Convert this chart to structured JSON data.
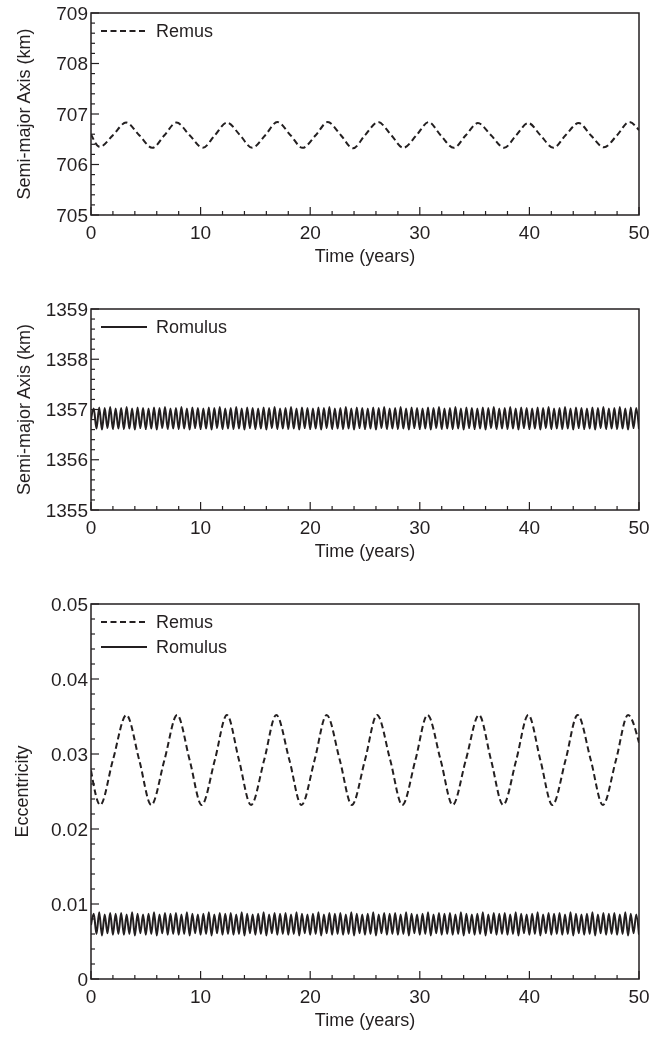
{
  "chart_data": [
    {
      "type": "line",
      "xlabel": "Time (years)",
      "ylabel": "Semi-major Axis (km)",
      "xlim": [
        0,
        50
      ],
      "ylim": [
        705,
        709
      ],
      "legend": "top left",
      "xticks": [
        0,
        {
          "value": 2,
          "label": null
        },
        {
          "value": 4,
          "label": null
        },
        {
          "value": 6,
          "label": null
        },
        {
          "value": 8,
          "label": null
        },
        10,
        {
          "value": 12,
          "label": null
        },
        {
          "value": 14,
          "label": null
        },
        {
          "value": 16,
          "label": null
        },
        {
          "value": 18,
          "label": null
        },
        20,
        {
          "value": 22,
          "label": null
        },
        {
          "value": 24,
          "label": null
        },
        {
          "value": 26,
          "label": null
        },
        {
          "value": 28,
          "label": null
        },
        30,
        {
          "value": 32,
          "label": null
        },
        {
          "value": 34,
          "label": null
        },
        {
          "value": 36,
          "label": null
        },
        {
          "value": 38,
          "label": null
        },
        40,
        {
          "value": 42,
          "label": null
        },
        {
          "value": 44,
          "label": null
        },
        {
          "value": 46,
          "label": null
        },
        {
          "value": 48,
          "label": null
        },
        50
      ],
      "yticks": [
        705,
        {
          "value": 705.2,
          "label": null
        },
        {
          "value": 705.4,
          "label": null
        },
        {
          "value": 705.6,
          "label": null
        },
        {
          "value": 705.8,
          "label": null
        },
        706,
        {
          "value": 706.2,
          "label": null
        },
        {
          "value": 706.4,
          "label": null
        },
        {
          "value": 706.6,
          "label": null
        },
        {
          "value": 706.8,
          "label": null
        },
        707,
        {
          "value": 707.2,
          "label": null
        },
        {
          "value": 707.4,
          "label": null
        },
        {
          "value": 707.6,
          "label": null
        },
        {
          "value": 707.8,
          "label": null
        },
        708,
        {
          "value": 708.2,
          "label": null
        },
        {
          "value": 708.4,
          "label": null
        },
        {
          "value": 708.6,
          "label": null
        },
        {
          "value": 708.8,
          "label": null
        },
        709
      ],
      "x": [
        0,
        0.8,
        2.0,
        3.2,
        4.4,
        5.6,
        6.7,
        7.8,
        9.0,
        10.2,
        11.3,
        12.4,
        13.6,
        14.7,
        15.9,
        17.0,
        18.2,
        19.3,
        20.5,
        21.6,
        22.8,
        23.9,
        25.0,
        26.2,
        27.4,
        28.5,
        29.7,
        30.8,
        31.9,
        33.1,
        34.2,
        35.3,
        36.5,
        37.7,
        38.8,
        39.9,
        41.0,
        42.2,
        43.3,
        44.5,
        45.6,
        46.8,
        48.0,
        49.1,
        50
      ],
      "series": [
        {
          "name": "Remus",
          "color": "#231f20",
          "line_style": "dashed",
          "values": [
            706.6,
            706.35,
            706.58,
            706.83,
            706.58,
            706.33,
            706.58,
            706.83,
            706.58,
            706.33,
            706.58,
            706.83,
            706.58,
            706.33,
            706.58,
            706.84,
            706.58,
            706.33,
            706.58,
            706.84,
            706.58,
            706.32,
            706.58,
            706.84,
            706.58,
            706.33,
            706.58,
            706.84,
            706.58,
            706.33,
            706.58,
            706.82,
            706.58,
            706.33,
            706.58,
            706.82,
            706.58,
            706.33,
            706.58,
            706.82,
            706.58,
            706.34,
            706.58,
            706.84,
            706.68
          ]
        }
      ]
    },
    {
      "type": "line",
      "xlabel": "Time (years)",
      "ylabel": "Semi-major Axis (km)",
      "xlim": [
        0,
        50
      ],
      "ylim": [
        1355,
        1359
      ],
      "legend": "top left",
      "xticks": [
        0,
        {
          "value": 2,
          "label": null
        },
        {
          "value": 4,
          "label": null
        },
        {
          "value": 6,
          "label": null
        },
        {
          "value": 8,
          "label": null
        },
        10,
        {
          "value": 12,
          "label": null
        },
        {
          "value": 14,
          "label": null
        },
        {
          "value": 16,
          "label": null
        },
        {
          "value": 18,
          "label": null
        },
        20,
        {
          "value": 22,
          "label": null
        },
        {
          "value": 24,
          "label": null
        },
        {
          "value": 26,
          "label": null
        },
        {
          "value": 28,
          "label": null
        },
        30,
        {
          "value": 32,
          "label": null
        },
        {
          "value": 34,
          "label": null
        },
        {
          "value": 36,
          "label": null
        },
        {
          "value": 38,
          "label": null
        },
        40,
        {
          "value": 42,
          "label": null
        },
        {
          "value": 44,
          "label": null
        },
        {
          "value": 46,
          "label": null
        },
        {
          "value": 48,
          "label": null
        },
        50
      ],
      "yticks": [
        1355,
        {
          "value": 1355.2,
          "label": null
        },
        {
          "value": 1355.4,
          "label": null
        },
        {
          "value": 1355.6,
          "label": null
        },
        {
          "value": 1355.8,
          "label": null
        },
        1356,
        {
          "value": 1356.2,
          "label": null
        },
        {
          "value": 1356.4,
          "label": null
        },
        {
          "value": 1356.6,
          "label": null
        },
        {
          "value": 1356.8,
          "label": null
        },
        1357,
        {
          "value": 1357.2,
          "label": null
        },
        {
          "value": 1357.4,
          "label": null
        },
        {
          "value": 1357.6,
          "label": null
        },
        {
          "value": 1357.8,
          "label": null
        },
        1358,
        {
          "value": 1358.2,
          "label": null
        },
        {
          "value": 1358.4,
          "label": null
        },
        {
          "value": 1358.6,
          "label": null
        },
        {
          "value": 1358.8,
          "label": null
        },
        1359
      ],
      "x": [
        0,
        0.25,
        0.5,
        0.75,
        1,
        1.25,
        1.5,
        1.75,
        2,
        2.25,
        2.5,
        2.75,
        3,
        3.25,
        3.5,
        3.75,
        4,
        4.25,
        4.5,
        4.75,
        5,
        5.25,
        5.5,
        5.75,
        6,
        6.25,
        6.5,
        6.75,
        7,
        7.25,
        7.5,
        7.75,
        8,
        8.25,
        8.5,
        8.75,
        9,
        9.25,
        9.5,
        9.75,
        10,
        10.25,
        10.5,
        10.75,
        11,
        11.25,
        11.5,
        11.75,
        12,
        12.25,
        12.5,
        12.75,
        13,
        13.25,
        13.5,
        13.75,
        14,
        14.25,
        14.5,
        14.75,
        15,
        15.25,
        15.5,
        15.75,
        16,
        16.25,
        16.5,
        16.75,
        17,
        17.25,
        17.5,
        17.75,
        18,
        18.25,
        18.5,
        18.75,
        19,
        19.25,
        19.5,
        19.75,
        20,
        20.25,
        20.5,
        20.75,
        21,
        21.25,
        21.5,
        21.75,
        22,
        22.25,
        22.5,
        22.75,
        23,
        23.25,
        23.5,
        23.75,
        24,
        24.25,
        24.5,
        24.75,
        25,
        25.25,
        25.5,
        25.75,
        26,
        26.25,
        26.5,
        26.75,
        27,
        27.25,
        27.5,
        27.75,
        28,
        28.25,
        28.5,
        28.75,
        29,
        29.25,
        29.5,
        29.75,
        30,
        30.25,
        30.5,
        30.75,
        31,
        31.25,
        31.5,
        31.75,
        32,
        32.25,
        32.5,
        32.75,
        33,
        33.25,
        33.5,
        33.75,
        34,
        34.25,
        34.5,
        34.75,
        35,
        35.25,
        35.5,
        35.75,
        36,
        36.25,
        36.5,
        36.75,
        37,
        37.25,
        37.5,
        37.75,
        38,
        38.25,
        38.5,
        38.75,
        39,
        39.25,
        39.5,
        39.75,
        40,
        40.25,
        40.5,
        40.75,
        41,
        41.25,
        41.5,
        41.75,
        42,
        42.25,
        42.5,
        42.75,
        43,
        43.25,
        43.5,
        43.75,
        44,
        44.25,
        44.5,
        44.75,
        45,
        45.25,
        45.5,
        45.75,
        46,
        46.25,
        46.5,
        46.75,
        47,
        47.25,
        47.5,
        47.75,
        48,
        48.25,
        48.5,
        48.75,
        49,
        49.25,
        49.5,
        49.75,
        50
      ],
      "series": [
        {
          "name": "Romulus",
          "color": "#231f20",
          "line_style": "solid",
          "values": [
            1356.8,
            1357.02,
            1356.62,
            1357.04,
            1356.6,
            1357.03,
            1356.63,
            1357.05,
            1356.61,
            1357.02,
            1356.62,
            1357.03,
            1356.61,
            1357.05,
            1356.62,
            1357.02,
            1356.6,
            1357.04,
            1356.63,
            1357.03,
            1356.61,
            1357.02,
            1356.62,
            1357.04,
            1356.6,
            1357.03,
            1356.63,
            1357.05,
            1356.61,
            1357.02,
            1356.62,
            1357.03,
            1356.61,
            1357.05,
            1356.62,
            1357.02,
            1356.6,
            1357.04,
            1356.63,
            1357.03,
            1356.61,
            1357.02,
            1356.62,
            1357.04,
            1356.6,
            1357.03,
            1356.63,
            1357.05,
            1356.61,
            1357.02,
            1356.62,
            1357.03,
            1356.61,
            1357.05,
            1356.62,
            1357.02,
            1356.6,
            1357.04,
            1356.63,
            1357.03,
            1356.61,
            1357.02,
            1356.62,
            1357.04,
            1356.6,
            1357.03,
            1356.63,
            1357.05,
            1356.61,
            1357.02,
            1356.62,
            1357.03,
            1356.61,
            1357.05,
            1356.62,
            1357.02,
            1356.6,
            1357.04,
            1356.63,
            1357.03,
            1356.61,
            1357.02,
            1356.62,
            1357.04,
            1356.6,
            1357.03,
            1356.63,
            1357.05,
            1356.61,
            1357.02,
            1356.62,
            1357.03,
            1356.61,
            1357.05,
            1356.62,
            1357.02,
            1356.6,
            1357.04,
            1356.63,
            1357.03,
            1356.61,
            1357.02,
            1356.62,
            1357.04,
            1356.6,
            1357.03,
            1356.63,
            1357.05,
            1356.61,
            1357.02,
            1356.62,
            1357.03,
            1356.61,
            1357.05,
            1356.62,
            1357.02,
            1356.6,
            1357.04,
            1356.63,
            1357.03,
            1356.61,
            1357.02,
            1356.62,
            1357.04,
            1356.6,
            1357.03,
            1356.63,
            1357.05,
            1356.61,
            1357.02,
            1356.62,
            1357.03,
            1356.61,
            1357.05,
            1356.62,
            1357.02,
            1356.6,
            1357.04,
            1356.63,
            1357.03,
            1356.61,
            1357.02,
            1356.62,
            1357.04,
            1356.6,
            1357.03,
            1356.63,
            1357.05,
            1356.61,
            1357.02,
            1356.62,
            1357.03,
            1356.61,
            1357.05,
            1356.62,
            1357.02,
            1356.6,
            1357.04,
            1356.63,
            1357.03,
            1356.61,
            1357.02,
            1356.62,
            1357.04,
            1356.6,
            1357.03,
            1356.63,
            1357.05,
            1356.61,
            1357.02,
            1356.62,
            1357.03,
            1356.61,
            1357.05,
            1356.62,
            1357.02,
            1356.6,
            1357.04,
            1356.63,
            1357.03,
            1356.61,
            1357.02,
            1356.62,
            1357.04,
            1356.6,
            1357.03,
            1356.63,
            1357.05,
            1356.61,
            1357.02,
            1356.62,
            1357.03,
            1356.61,
            1357.05,
            1356.62,
            1357.02,
            1356.6,
            1357.04,
            1356.63,
            1357.03,
            1356.61
          ]
        }
      ]
    },
    {
      "type": "line",
      "xlabel": "Time (years)",
      "ylabel": "Eccentricity",
      "xlim": [
        0,
        50
      ],
      "ylim": [
        0,
        0.05
      ],
      "legend": "top left",
      "xticks": [
        0,
        {
          "value": 2,
          "label": null
        },
        {
          "value": 4,
          "label": null
        },
        {
          "value": 6,
          "label": null
        },
        {
          "value": 8,
          "label": null
        },
        10,
        {
          "value": 12,
          "label": null
        },
        {
          "value": 14,
          "label": null
        },
        {
          "value": 16,
          "label": null
        },
        {
          "value": 18,
          "label": null
        },
        20,
        {
          "value": 22,
          "label": null
        },
        {
          "value": 24,
          "label": null
        },
        {
          "value": 26,
          "label": null
        },
        {
          "value": 28,
          "label": null
        },
        30,
        {
          "value": 32,
          "label": null
        },
        {
          "value": 34,
          "label": null
        },
        {
          "value": 36,
          "label": null
        },
        {
          "value": 38,
          "label": null
        },
        40,
        {
          "value": 42,
          "label": null
        },
        {
          "value": 44,
          "label": null
        },
        {
          "value": 46,
          "label": null
        },
        {
          "value": 48,
          "label": null
        },
        50
      ],
      "yticks": [
        0,
        {
          "value": 0.002,
          "label": null
        },
        {
          "value": 0.004,
          "label": null
        },
        {
          "value": 0.006,
          "label": null
        },
        {
          "value": 0.008,
          "label": null
        },
        0.01,
        {
          "value": 0.012,
          "label": null
        },
        {
          "value": 0.014,
          "label": null
        },
        {
          "value": 0.016,
          "label": null
        },
        {
          "value": 0.018,
          "label": null
        },
        0.02,
        {
          "value": 0.022,
          "label": null
        },
        {
          "value": 0.024,
          "label": null
        },
        {
          "value": 0.026,
          "label": null
        },
        {
          "value": 0.028,
          "label": null
        },
        0.03,
        {
          "value": 0.032,
          "label": null
        },
        {
          "value": 0.034,
          "label": null
        },
        {
          "value": 0.036,
          "label": null
        },
        {
          "value": 0.038,
          "label": null
        },
        0.04,
        {
          "value": 0.042,
          "label": null
        },
        {
          "value": 0.044,
          "label": null
        },
        {
          "value": 0.046,
          "label": null
        },
        {
          "value": 0.048,
          "label": null
        },
        0.05
      ],
      "x": [
        0,
        0.25,
        0.5,
        0.75,
        1,
        1.25,
        1.5,
        1.75,
        2,
        2.25,
        2.5,
        2.75,
        3,
        3.25,
        3.5,
        3.75,
        4,
        4.25,
        4.5,
        4.75,
        5,
        5.25,
        5.5,
        5.75,
        6,
        6.25,
        6.5,
        6.75,
        7,
        7.25,
        7.5,
        7.75,
        8,
        8.25,
        8.5,
        8.75,
        9,
        9.25,
        9.5,
        9.75,
        10,
        10.25,
        10.5,
        10.75,
        11,
        11.25,
        11.5,
        11.75,
        12,
        12.25,
        12.5,
        12.75,
        13,
        13.25,
        13.5,
        13.75,
        14,
        14.25,
        14.5,
        14.75,
        15,
        15.25,
        15.5,
        15.75,
        16,
        16.25,
        16.5,
        16.75,
        17,
        17.25,
        17.5,
        17.75,
        18,
        18.25,
        18.5,
        18.75,
        19,
        19.25,
        19.5,
        19.75,
        20,
        20.25,
        20.5,
        20.75,
        21,
        21.25,
        21.5,
        21.75,
        22,
        22.25,
        22.5,
        22.75,
        23,
        23.25,
        23.5,
        23.75,
        24,
        24.25,
        24.5,
        24.75,
        25,
        25.25,
        25.5,
        25.75,
        26,
        26.25,
        26.5,
        26.75,
        27,
        27.25,
        27.5,
        27.75,
        28,
        28.25,
        28.5,
        28.75,
        29,
        29.25,
        29.5,
        29.75,
        30,
        30.25,
        30.5,
        30.75,
        31,
        31.25,
        31.5,
        31.75,
        32,
        32.25,
        32.5,
        32.75,
        33,
        33.25,
        33.5,
        33.75,
        34,
        34.25,
        34.5,
        34.75,
        35,
        35.25,
        35.5,
        35.75,
        36,
        36.25,
        36.5,
        36.75,
        37,
        37.25,
        37.5,
        37.75,
        38,
        38.25,
        38.5,
        38.75,
        39,
        39.25,
        39.5,
        39.75,
        40,
        40.25,
        40.5,
        40.75,
        41,
        41.25,
        41.5,
        41.75,
        42,
        42.25,
        42.5,
        42.75,
        43,
        43.25,
        43.5,
        43.75,
        44,
        44.25,
        44.5,
        44.75,
        45,
        45.25,
        45.5,
        45.75,
        46,
        46.25,
        46.5,
        46.75,
        47,
        47.25,
        47.5,
        47.75,
        48,
        48.25,
        48.5,
        48.75,
        49,
        49.25,
        49.5,
        49.75,
        50
      ],
      "series": [
        {
          "name": "Remus",
          "color": "#231f20",
          "line_style": "dashed",
          "x": [
            0,
            0.84,
            2.0,
            3.23,
            4.4,
            5.5,
            6.7,
            7.86,
            9.0,
            10.1,
            11.3,
            12.4,
            13.5,
            14.6,
            15.8,
            16.9,
            18.1,
            19.2,
            20.4,
            21.5,
            22.7,
            23.8,
            25.0,
            26.1,
            27.3,
            28.4,
            29.6,
            30.7,
            31.9,
            33.0,
            34.2,
            35.4,
            36.5,
            37.6,
            38.8,
            39.9,
            41.0,
            42.1,
            43.3,
            44.4,
            45.6,
            46.7,
            47.9,
            49.0,
            50
          ],
          "values": [
            0.0278,
            0.0232,
            0.0292,
            0.0352,
            0.0292,
            0.0232,
            0.0292,
            0.0352,
            0.0292,
            0.0232,
            0.0292,
            0.0352,
            0.0292,
            0.0232,
            0.0292,
            0.0352,
            0.0292,
            0.0232,
            0.0292,
            0.0352,
            0.0292,
            0.0232,
            0.0292,
            0.0352,
            0.0292,
            0.0232,
            0.0292,
            0.0352,
            0.0292,
            0.0232,
            0.0292,
            0.0352,
            0.0292,
            0.0232,
            0.0292,
            0.0352,
            0.0292,
            0.0232,
            0.0292,
            0.0352,
            0.0292,
            0.0232,
            0.0292,
            0.0352,
            0.0315
          ]
        },
        {
          "name": "Romulus",
          "color": "#231f20",
          "line_style": "solid",
          "values": [
            0.0072,
            0.0087,
            0.006,
            0.0089,
            0.0058,
            0.0086,
            0.0061,
            0.0088,
            0.0059,
            0.0087,
            0.006,
            0.0088,
            0.0059,
            0.0086,
            0.006,
            0.0089,
            0.0058,
            0.0087,
            0.0061,
            0.0086,
            0.0059,
            0.0087,
            0.006,
            0.0089,
            0.0058,
            0.0086,
            0.0061,
            0.0088,
            0.0059,
            0.0087,
            0.006,
            0.0088,
            0.0059,
            0.0086,
            0.006,
            0.0089,
            0.0058,
            0.0087,
            0.0061,
            0.0086,
            0.0059,
            0.0087,
            0.006,
            0.0089,
            0.0058,
            0.0086,
            0.0061,
            0.0088,
            0.0059,
            0.0087,
            0.006,
            0.0088,
            0.0059,
            0.0086,
            0.006,
            0.0089,
            0.0058,
            0.0087,
            0.0061,
            0.0086,
            0.0059,
            0.0087,
            0.006,
            0.0089,
            0.0058,
            0.0086,
            0.0061,
            0.0088,
            0.0059,
            0.0087,
            0.006,
            0.0088,
            0.0059,
            0.0086,
            0.006,
            0.0089,
            0.0058,
            0.0087,
            0.0061,
            0.0086,
            0.0059,
            0.0087,
            0.006,
            0.0089,
            0.0058,
            0.0086,
            0.0061,
            0.0088,
            0.0059,
            0.0087,
            0.006,
            0.0088,
            0.0059,
            0.0086,
            0.006,
            0.0089,
            0.0058,
            0.0087,
            0.0061,
            0.0086,
            0.0059,
            0.0087,
            0.006,
            0.0089,
            0.0058,
            0.0086,
            0.0061,
            0.0088,
            0.0059,
            0.0087,
            0.006,
            0.0088,
            0.0059,
            0.0086,
            0.006,
            0.0089,
            0.0058,
            0.0087,
            0.0061,
            0.0086,
            0.0059,
            0.0087,
            0.006,
            0.0089,
            0.0058,
            0.0086,
            0.0061,
            0.0088,
            0.0059,
            0.0087,
            0.006,
            0.0088,
            0.0059,
            0.0086,
            0.006,
            0.0089,
            0.0058,
            0.0087,
            0.0061,
            0.0086,
            0.0059,
            0.0087,
            0.006,
            0.0089,
            0.0058,
            0.0086,
            0.0061,
            0.0088,
            0.0059,
            0.0087,
            0.006,
            0.0088,
            0.0059,
            0.0086,
            0.006,
            0.0089,
            0.0058,
            0.0087,
            0.0061,
            0.0086,
            0.0059,
            0.0087,
            0.006,
            0.0089,
            0.0058,
            0.0086,
            0.0061,
            0.0088,
            0.0059,
            0.0087,
            0.006,
            0.0088,
            0.0059,
            0.0086,
            0.006,
            0.0089,
            0.0058,
            0.0087,
            0.0061,
            0.0086,
            0.0059,
            0.0087,
            0.006,
            0.0089,
            0.0058,
            0.0086,
            0.0061,
            0.0088,
            0.0059,
            0.0087,
            0.006,
            0.0088,
            0.0059,
            0.0086,
            0.006,
            0.0089,
            0.0058,
            0.0087,
            0.0061,
            0.0086,
            0.0059
          ]
        }
      ]
    }
  ]
}
